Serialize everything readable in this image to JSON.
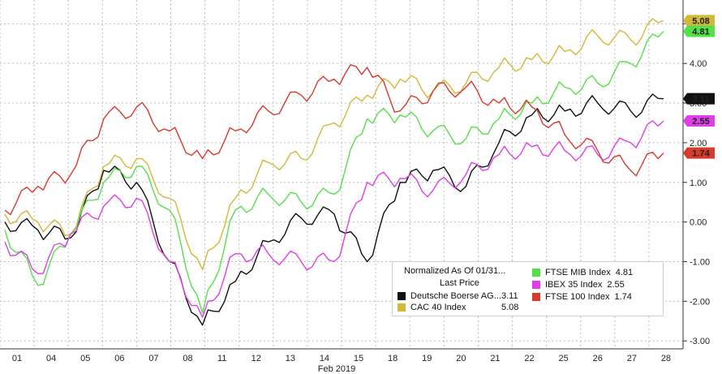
{
  "chart_data": {
    "type": "line",
    "xlabel": "Feb 2019",
    "ylim": [
      -3.2,
      5.6
    ],
    "grid": true,
    "legend_position": "bottom-right",
    "x_ticks": [
      "01",
      "04",
      "05",
      "06",
      "07",
      "08",
      "11",
      "12",
      "13",
      "14",
      "15",
      "18",
      "19",
      "20",
      "21",
      "22",
      "25",
      "26",
      "27",
      "28"
    ],
    "y_ticks": [
      "-3.00",
      "-2.00",
      "-1.00",
      "0.00",
      "1.00",
      "2.00",
      "3.00",
      "4.00",
      "5.00"
    ],
    "legend": {
      "header1": "Normalized As Of 01/31...",
      "header2": "Last Price"
    },
    "series": [
      {
        "name": "Deutsche Boerse AG...",
        "last": "3.11",
        "color": "#111111",
        "values": [
          0.0,
          -0.2,
          -0.4,
          1.3,
          1.0,
          -1.0,
          -2.6,
          -1.5,
          -0.5,
          0.1,
          0.2,
          -1.0,
          1.0,
          1.3,
          0.9,
          2.0,
          2.7,
          2.8,
          3.0,
          2.8,
          3.11
        ]
      },
      {
        "name": "CAC 40 Index",
        "last": "5.08",
        "color": "#d2b93a",
        "values": [
          0.2,
          0.0,
          -0.3,
          1.4,
          1.6,
          0.6,
          -1.2,
          0.6,
          1.5,
          1.6,
          2.5,
          3.2,
          3.6,
          3.3,
          3.5,
          3.9,
          4.1,
          4.3,
          4.7,
          4.6,
          5.08
        ]
      },
      {
        "name": "FTSE MIB Index",
        "last": "4.81",
        "color": "#55e04a",
        "values": [
          -0.2,
          -1.6,
          -0.3,
          1.0,
          1.4,
          0.3,
          -2.3,
          0.3,
          0.7,
          0.5,
          0.7,
          2.6,
          2.7,
          2.3,
          2.1,
          2.6,
          3.0,
          3.4,
          3.5,
          4.0,
          4.81
        ]
      },
      {
        "name": "IBEX 35 Index",
        "last": "2.55",
        "color": "#e03ee8",
        "values": [
          -0.5,
          -1.3,
          -0.3,
          0.4,
          0.6,
          -1.0,
          -2.4,
          -0.8,
          -0.8,
          -1.0,
          -1.0,
          1.0,
          1.1,
          0.8,
          1.2,
          1.7,
          1.9,
          1.8,
          1.7,
          2.0,
          2.55
        ]
      },
      {
        "name": "FTSE 100 Index",
        "last": "1.74",
        "color": "#d63b2c",
        "values": [
          0.3,
          0.9,
          1.2,
          2.6,
          2.9,
          2.3,
          1.6,
          2.3,
          2.8,
          3.2,
          3.6,
          3.9,
          2.8,
          3.3,
          3.4,
          3.0,
          2.9,
          2.2,
          1.8,
          1.3,
          1.74
        ]
      }
    ]
  }
}
